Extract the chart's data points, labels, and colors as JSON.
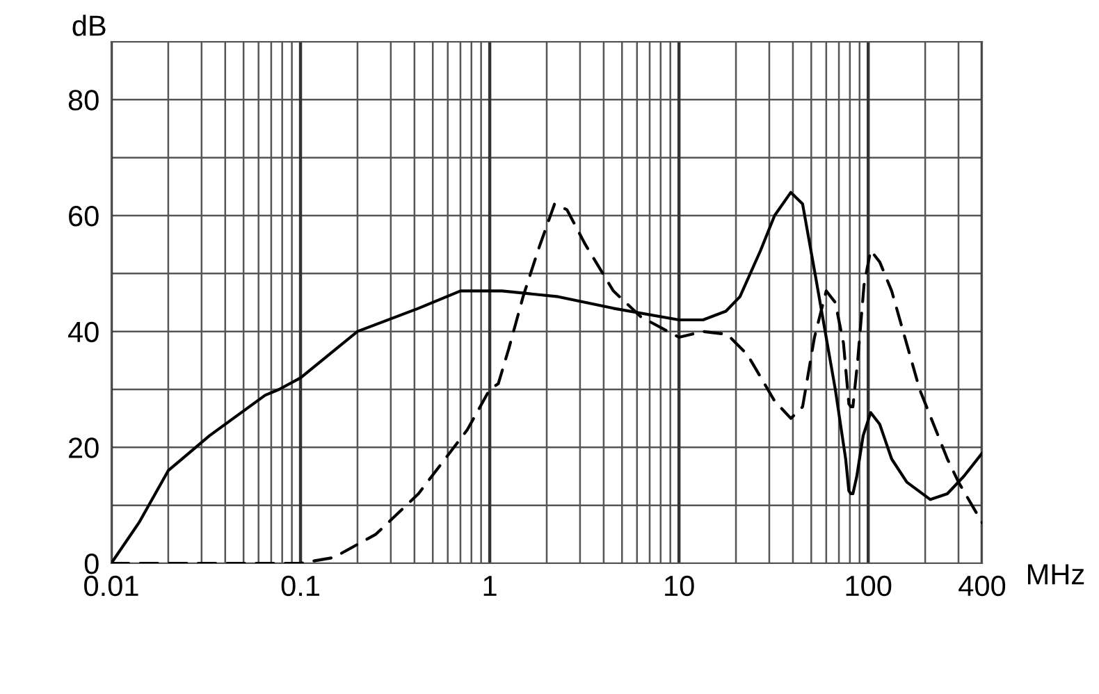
{
  "chart_data": {
    "type": "line",
    "xlabel": "MHz",
    "ylabel": "dB",
    "log": "x",
    "grid": true,
    "marker": "none",
    "legend": false,
    "xlim": [
      0.01,
      400
    ],
    "ylim": [
      0,
      90
    ],
    "xticks": [
      {
        "value": 0.01,
        "label": "0.01"
      },
      {
        "value": 0.02,
        "label": null
      },
      {
        "value": 0.03,
        "label": null
      },
      {
        "value": 0.04,
        "label": null
      },
      {
        "value": 0.05,
        "label": null
      },
      {
        "value": 0.06,
        "label": null
      },
      {
        "value": 0.07,
        "label": null
      },
      {
        "value": 0.08,
        "label": null
      },
      {
        "value": 0.09,
        "label": null
      },
      {
        "value": 0.1,
        "label": "0.1"
      },
      {
        "value": 0.2,
        "label": null
      },
      {
        "value": 0.3,
        "label": null
      },
      {
        "value": 0.4,
        "label": null
      },
      {
        "value": 0.5,
        "label": null
      },
      {
        "value": 0.6,
        "label": null
      },
      {
        "value": 0.7,
        "label": null
      },
      {
        "value": 0.8,
        "label": null
      },
      {
        "value": 0.9,
        "label": null
      },
      1,
      {
        "value": 2,
        "label": null
      },
      {
        "value": 3,
        "label": null
      },
      {
        "value": 4,
        "label": null
      },
      {
        "value": 5,
        "label": null
      },
      {
        "value": 6,
        "label": null
      },
      {
        "value": 7,
        "label": null
      },
      {
        "value": 8,
        "label": null
      },
      {
        "value": 9,
        "label": null
      },
      10,
      {
        "value": 20,
        "label": null
      },
      {
        "value": 30,
        "label": null
      },
      {
        "value": 40,
        "label": null
      },
      {
        "value": 50,
        "label": null
      },
      {
        "value": 60,
        "label": null
      },
      {
        "value": 70,
        "label": null
      },
      {
        "value": 80,
        "label": null
      },
      {
        "value": 90,
        "label": null
      },
      100,
      {
        "value": 200,
        "label": null
      },
      {
        "value": 300,
        "label": null
      },
      400
    ],
    "yticks": [
      0,
      {
        "value": 10,
        "label": null
      },
      20,
      {
        "value": 30,
        "label": null
      },
      40,
      {
        "value": 50,
        "label": null
      },
      60,
      {
        "value": 70,
        "label": null
      },
      80,
      {
        "value": 90,
        "label": null
      }
    ],
    "series": [
      {
        "color": "#000000",
        "line_style": "solid",
        "x": [
          0.01,
          0.014,
          0.02,
          0.033,
          0.065,
          0.077,
          0.1,
          0.2,
          0.42,
          0.7,
          1.16,
          2.3,
          4.5,
          10,
          13.4,
          17.7,
          21,
          27,
          32,
          39,
          45,
          53,
          67,
          76,
          79,
          81,
          83,
          87,
          94,
          103,
          115,
          133,
          160,
          213,
          262,
          320,
          400
        ],
        "values": [
          0,
          7,
          16,
          22,
          29,
          30,
          32,
          40,
          44,
          47,
          47,
          46,
          44,
          42,
          42,
          43.5,
          46,
          54,
          60,
          64,
          62,
          49,
          30,
          18,
          12.5,
          12,
          12,
          15,
          22,
          26,
          24,
          18,
          14,
          11,
          12,
          15,
          19
        ]
      },
      {
        "color": "#000000",
        "line_style": "dashed",
        "x": [
          0.01,
          0.1,
          0.15,
          0.25,
          0.42,
          0.58,
          0.76,
          1,
          1.11,
          1.26,
          1.5,
          1.8,
          2.2,
          2.56,
          3.2,
          4.5,
          6.3,
          10,
          13.4,
          18,
          23,
          32,
          39,
          45,
          52,
          60,
          67,
          74,
          79,
          81,
          83,
          88,
          95,
          103,
          115,
          133,
          187,
          262,
          300,
          400
        ],
        "values": [
          0,
          0,
          1,
          5,
          12,
          18,
          23,
          30,
          31,
          37,
          46,
          54,
          62,
          61,
          55,
          47,
          42.5,
          39,
          40,
          39.5,
          36,
          28,
          25,
          27,
          39,
          47,
          45,
          38,
          27.5,
          27,
          27,
          35,
          48,
          54,
          52,
          47,
          30,
          18,
          14,
          7
        ]
      }
    ]
  }
}
